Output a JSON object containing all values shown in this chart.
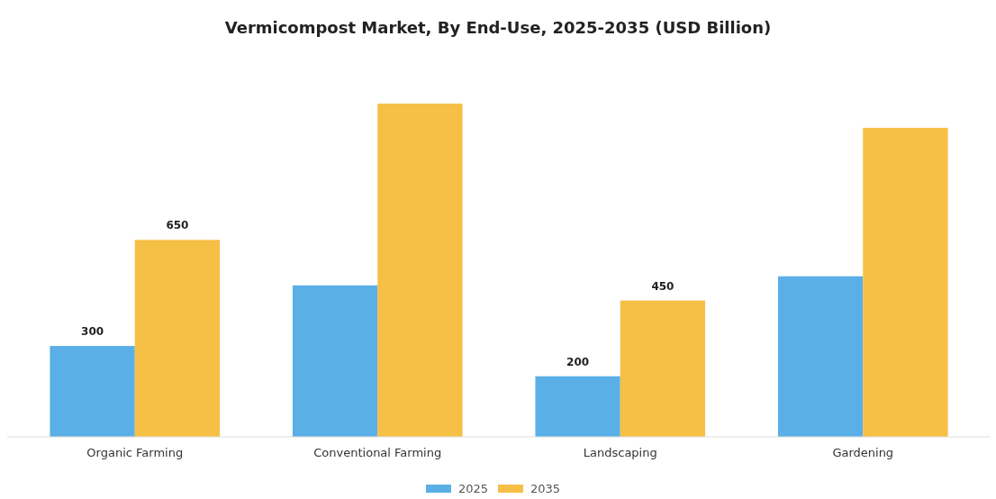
{
  "chart_data": {
    "type": "bar",
    "title": "Vermicompost Market, By End-Use, 2025-2035 (USD Billion)",
    "categories": [
      "Organic Farming",
      "Conventional Farming",
      "Landscaping",
      "Gardening"
    ],
    "series": [
      {
        "name": "2025",
        "color": "#5ab0e6",
        "values": [
          300,
          500,
          200,
          530
        ],
        "value_labels": [
          "300",
          null,
          "200",
          null
        ]
      },
      {
        "name": "2035",
        "color": "#f6bf45",
        "values": [
          650,
          1100,
          450,
          1020
        ],
        "value_labels": [
          "650",
          null,
          "450",
          null
        ]
      }
    ],
    "legend": "bottom"
  }
}
